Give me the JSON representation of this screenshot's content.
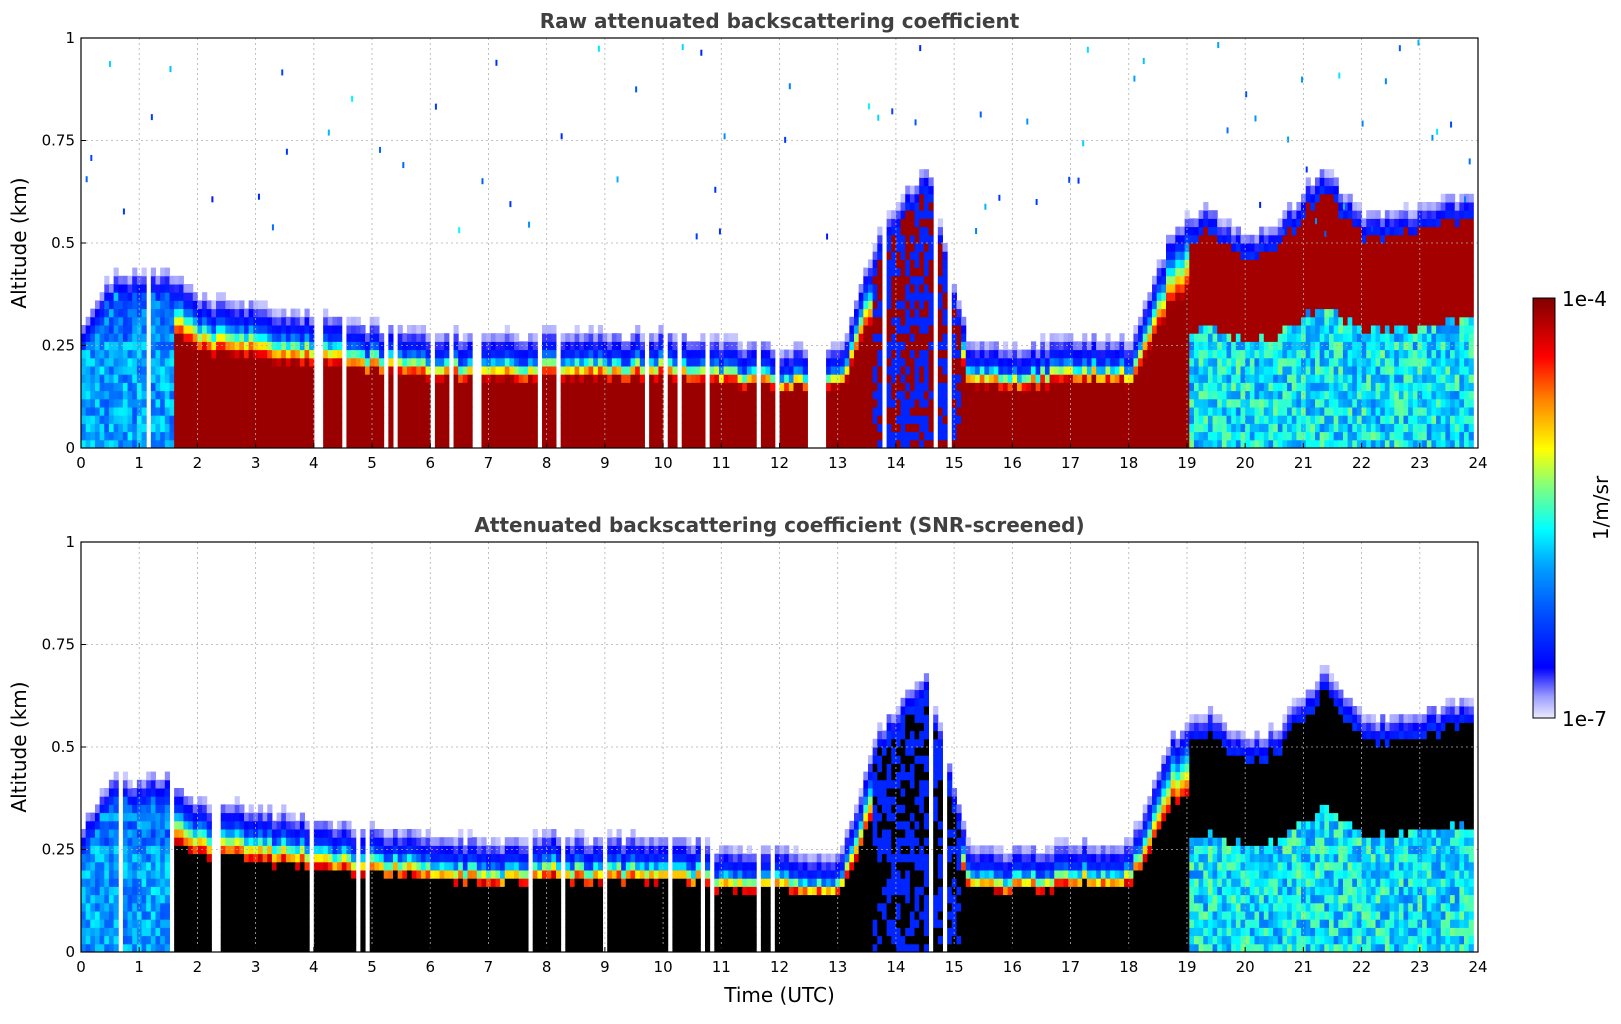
{
  "chart_data": [
    {
      "type": "heatmap",
      "title": "Raw attenuated backscattering coefficient",
      "xlabel": "",
      "ylabel": "Altitude (km)",
      "xlim": [
        0,
        24
      ],
      "ylim": [
        0,
        1
      ],
      "xticks": [
        "0",
        "1",
        "2",
        "3",
        "4",
        "5",
        "6",
        "7",
        "8",
        "9",
        "10",
        "11",
        "12",
        "13",
        "14",
        "15",
        "16",
        "17",
        "18",
        "19",
        "20",
        "21",
        "22",
        "23",
        "24"
      ],
      "yticks": [
        "0",
        "0.25",
        "0.5",
        "0.75",
        "1"
      ],
      "grid": true,
      "screened": false
    },
    {
      "type": "heatmap",
      "title": "Attenuated backscattering coefficient (SNR-screened)",
      "xlabel": "Time (UTC)",
      "ylabel": "Altitude (km)",
      "xlim": [
        0,
        24
      ],
      "ylim": [
        0,
        1
      ],
      "xticks": [
        "0",
        "1",
        "2",
        "3",
        "4",
        "5",
        "6",
        "7",
        "8",
        "9",
        "10",
        "11",
        "12",
        "13",
        "14",
        "15",
        "16",
        "17",
        "18",
        "19",
        "20",
        "21",
        "22",
        "23",
        "24"
      ],
      "yticks": [
        "0",
        "0.25",
        "0.5",
        "0.75",
        "1"
      ],
      "grid": true,
      "screened": true
    }
  ],
  "colorbar": {
    "label": "1/m/sr",
    "max_label": "1e-4",
    "min_label": "1e-7",
    "colormap": "jet",
    "scale": "log"
  },
  "layers": {
    "boundary_layer_top_km": [
      [
        0,
        0.25
      ],
      [
        0.5,
        0.35
      ],
      [
        1.5,
        0.36
      ],
      [
        2,
        0.3
      ],
      [
        3,
        0.28
      ],
      [
        3.5,
        0.27
      ],
      [
        5,
        0.23
      ],
      [
        6,
        0.22
      ],
      [
        7,
        0.2
      ],
      [
        8,
        0.22
      ],
      [
        9,
        0.21
      ],
      [
        10,
        0.22
      ],
      [
        11,
        0.19
      ],
      [
        12,
        0.18
      ],
      [
        13,
        0.17
      ],
      [
        13.7,
        0.48
      ],
      [
        14.5,
        0.62
      ],
      [
        15.2,
        0.2
      ],
      [
        16,
        0.18
      ],
      [
        17,
        0.2
      ],
      [
        18,
        0.2
      ],
      [
        18.7,
        0.46
      ],
      [
        19.3,
        0.52
      ],
      [
        20,
        0.45
      ],
      [
        20.5,
        0.48
      ],
      [
        21.3,
        0.62
      ],
      [
        22,
        0.5
      ],
      [
        23,
        0.52
      ],
      [
        23.8,
        0.55
      ]
    ]
  }
}
